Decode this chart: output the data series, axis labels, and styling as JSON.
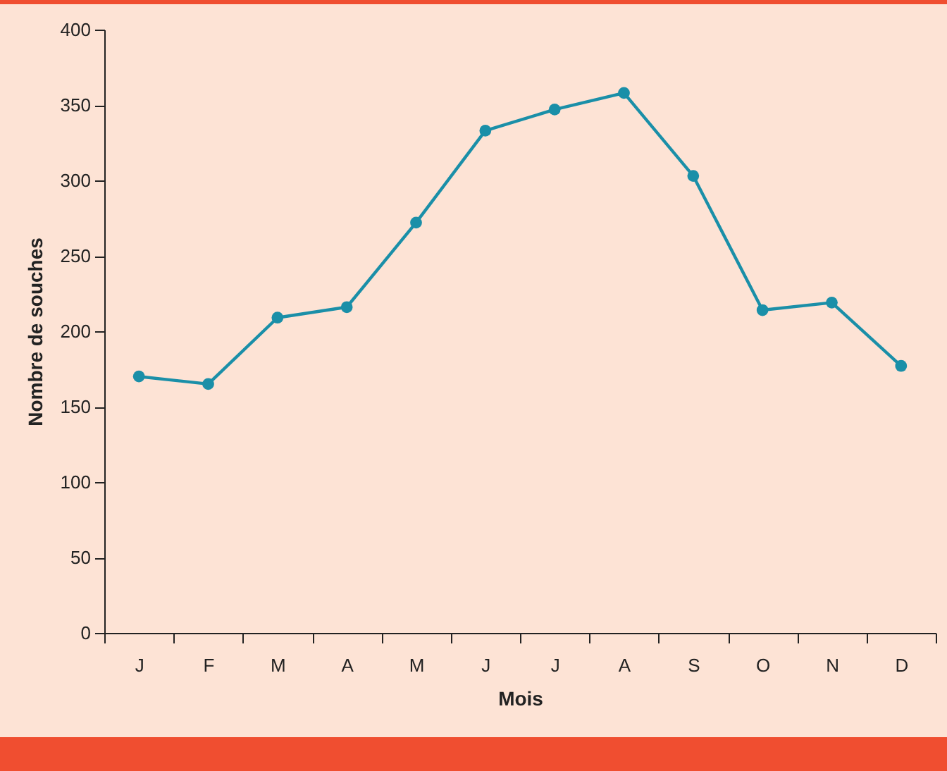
{
  "chart_data": {
    "type": "line",
    "xlabel": "Mois",
    "ylabel": "Nombre de souches",
    "categories": [
      "J",
      "F",
      "M",
      "A",
      "M",
      "J",
      "J",
      "A",
      "S",
      "O",
      "N",
      "D"
    ],
    "series": [
      {
        "color": "#1a8fa8",
        "values": [
          170,
          165,
          209,
          216,
          272,
          333,
          347,
          358,
          303,
          214,
          219,
          177
        ]
      }
    ],
    "ylim": [
      0,
      400
    ],
    "yticks": [
      0,
      50,
      100,
      150,
      200,
      250,
      300,
      350,
      400
    ],
    "grid": false,
    "marker": "circle",
    "line_style": "solid"
  }
}
